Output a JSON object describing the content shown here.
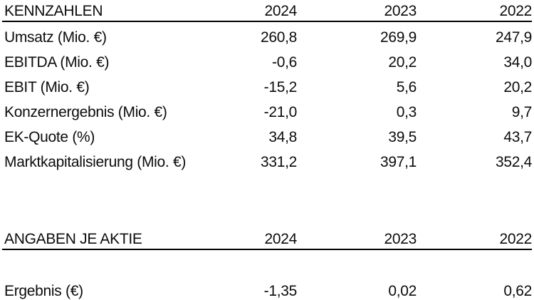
{
  "page": {
    "background_color": "#ffffff",
    "text_color": "#0c0c0c",
    "rule_color": "#000000"
  },
  "tables": [
    {
      "header": {
        "label": "KENNZAHLEN",
        "years": [
          "2024",
          "2023",
          "2022"
        ]
      },
      "rows": [
        {
          "label": "Umsatz (Mio. €)",
          "values": [
            "260,8",
            "269,9",
            "247,9"
          ]
        },
        {
          "label": "EBITDA (Mio. €)",
          "values": [
            "-0,6",
            "20,2",
            "34,0"
          ]
        },
        {
          "label": "EBIT (Mio. €)",
          "values": [
            "-15,2",
            "5,6",
            "20,2"
          ]
        },
        {
          "label": "Konzernergebnis (Mio. €)",
          "values": [
            "-21,0",
            "0,3",
            "9,7"
          ]
        },
        {
          "label": "EK-Quote (%)",
          "values": [
            "34,8",
            "39,5",
            "43,7"
          ]
        },
        {
          "label": "Marktkapitalisierung (Mio. €)",
          "values": [
            "331,2",
            "397,1",
            "352,4"
          ]
        }
      ]
    },
    {
      "header": {
        "label": "ANGABEN JE AKTIE",
        "years": [
          "2024",
          "2023",
          "2022"
        ]
      },
      "rows": [
        {
          "label": "Ergebnis (€)",
          "values": [
            "-1,35",
            "0,02",
            "0,62"
          ]
        }
      ]
    }
  ]
}
